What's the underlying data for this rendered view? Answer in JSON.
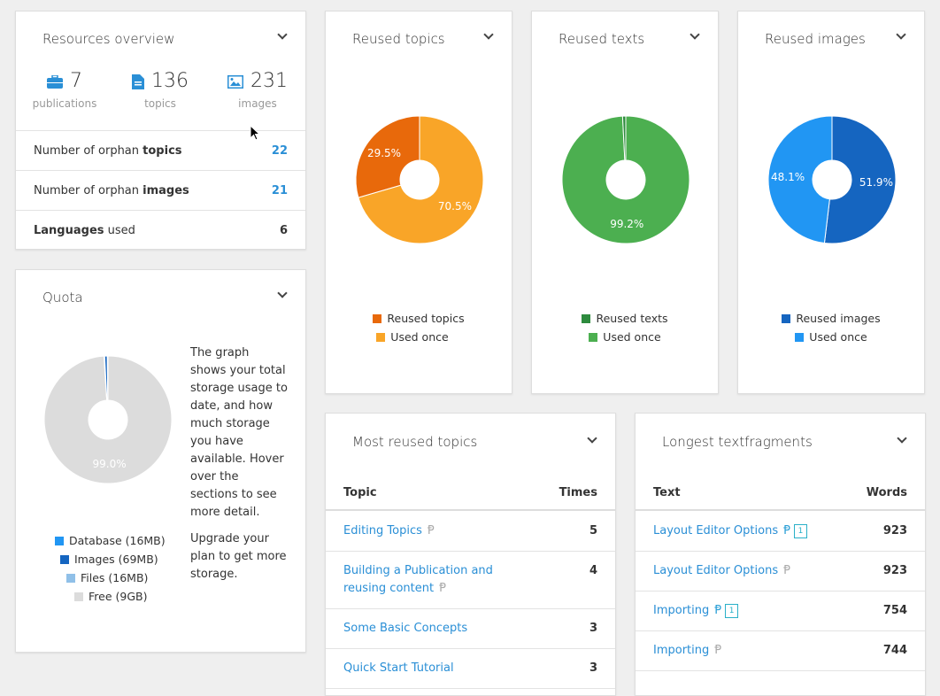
{
  "resources": {
    "title": "Resources overview",
    "stats": [
      {
        "icon": "briefcase-icon",
        "value": "7",
        "label": "publications"
      },
      {
        "icon": "document-icon",
        "value": "136",
        "label": "topics"
      },
      {
        "icon": "image-icon",
        "value": "231",
        "label": "images"
      }
    ],
    "rows": [
      {
        "pre": "Number of orphan ",
        "bold": "topics",
        "post": "",
        "value": "22"
      },
      {
        "pre": "Number of orphan ",
        "bold": "images",
        "post": "",
        "value": "21"
      },
      {
        "pre": "",
        "bold": "Languages",
        "post": " used",
        "value": "6"
      }
    ]
  },
  "quota": {
    "title": "Quota",
    "description": "The graph shows your total storage usage to date, and how much storage you have available. Hover over the sections to see more detail.",
    "upgrade": "Upgrade your plan to get more storage.",
    "free_label": "99.0%",
    "legend": [
      {
        "label": "Database (16MB)",
        "color": "#2196f3"
      },
      {
        "label": "Images (69MB)",
        "color": "#1565c0"
      },
      {
        "label": "Files (16MB)",
        "color": "#90c0e8"
      },
      {
        "label": "Free (9GB)",
        "color": "#dcdcdc"
      }
    ]
  },
  "chart_data": [
    {
      "type": "pie",
      "title": "Reused topics",
      "slices": [
        {
          "label": "Used once",
          "value": 70.5,
          "color": "#f9a528",
          "text": "70.5%"
        },
        {
          "label": "Reused topics",
          "value": 29.5,
          "color": "#e8690b",
          "text": "29.5%"
        }
      ]
    },
    {
      "type": "pie",
      "title": "Reused texts",
      "slices": [
        {
          "label": "Used once",
          "value": 99.2,
          "color": "#4caf50",
          "text": "99.2%"
        },
        {
          "label": "Reused texts",
          "value": 0.8,
          "color": "#2e8b3e",
          "text": ""
        }
      ]
    },
    {
      "type": "pie",
      "title": "Reused images",
      "slices": [
        {
          "label": "Reused images",
          "value": 51.9,
          "color": "#1565c0",
          "text": "51.9%"
        },
        {
          "label": "Used once",
          "value": 48.1,
          "color": "#2196f3",
          "text": "48.1%"
        }
      ]
    },
    {
      "type": "pie",
      "title": "Quota",
      "slices": [
        {
          "label": "Free (9GB)",
          "value": 99.0,
          "color": "#dcdcdc",
          "text": "99.0%"
        },
        {
          "label": "Database (16MB)",
          "value": 0.17,
          "color": "#2196f3",
          "text": ""
        },
        {
          "label": "Images (69MB)",
          "value": 0.66,
          "color": "#1565c0",
          "text": ""
        },
        {
          "label": "Files (16MB)",
          "value": 0.17,
          "color": "#90c0e8",
          "text": ""
        }
      ]
    }
  ],
  "legends": [
    [
      {
        "label": "Reused topics",
        "color": "#e8690b"
      },
      {
        "label": "Used once",
        "color": "#f9a528"
      }
    ],
    [
      {
        "label": "Reused texts",
        "color": "#2e8b3e"
      },
      {
        "label": "Used once",
        "color": "#4caf50"
      }
    ],
    [
      {
        "label": "Reused images",
        "color": "#1565c0"
      },
      {
        "label": "Used once",
        "color": "#2196f3"
      }
    ]
  ],
  "most_reused": {
    "title": "Most reused topics",
    "col1": "Topic",
    "col2": "Times",
    "rows": [
      {
        "name": "Editing Topics",
        "value": "5"
      },
      {
        "name": "Building a Publication and reusing content",
        "value": "4"
      },
      {
        "name": "Some Basic Concepts",
        "value": "3"
      },
      {
        "name": "Quick Start Tutorial",
        "value": "3"
      }
    ]
  },
  "longest": {
    "title": "Longest textfragments",
    "col1": "Text",
    "col2": "Words",
    "rows": [
      {
        "name": "Layout Editor Options",
        "badge": "1",
        "value": "923"
      },
      {
        "name": "Layout Editor Options",
        "badge": null,
        "value": "923"
      },
      {
        "name": "Importing",
        "badge": "1",
        "value": "754"
      },
      {
        "name": "Importing",
        "badge": null,
        "value": "744"
      }
    ]
  }
}
